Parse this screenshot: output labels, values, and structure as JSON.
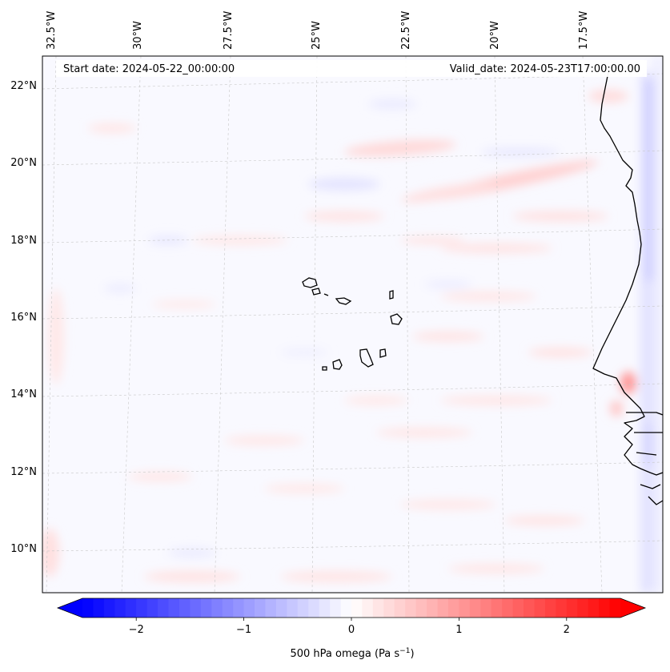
{
  "header": {
    "start_date": "Start date: 2024-05-22_00:00:00",
    "valid_date": "Valid_date: 2024-05-23T17:00:00.00"
  },
  "map": {
    "lon_labels": [
      "32.5°W",
      "30°W",
      "27.5°W",
      "25°W",
      "22.5°W",
      "20°W",
      "17.5°W"
    ],
    "lat_labels": [
      "22°N",
      "20°N",
      "18°N",
      "16°N",
      "14°N",
      "12°N",
      "10°N"
    ],
    "gridlines": true,
    "field": "500 hPa omega",
    "colormap": "bwr"
  },
  "colorbar": {
    "ticks": [
      "−2",
      "−1",
      "0",
      "1",
      "2"
    ],
    "tick_values": [
      -2,
      -1,
      0,
      1,
      2
    ],
    "range": [
      -2.5,
      2.5
    ],
    "extend": "both",
    "label": "500 hPa omega (Pa s",
    "label_exponent": "−1",
    "label_close": ")",
    "colors": {
      "min": "#0000ff",
      "mid": "#ffffff",
      "max": "#ff0000"
    }
  }
}
